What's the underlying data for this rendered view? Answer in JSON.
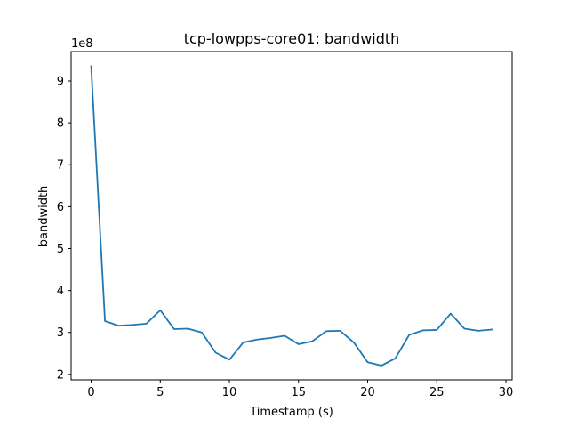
{
  "chart_data": {
    "type": "line",
    "title": "tcp-lowpps-core01: bandwidth",
    "xlabel": "Timestamp (s)",
    "ylabel": "bandwidth",
    "y_offset_label": "1e8",
    "xlim": [
      -1.45,
      30.45
    ],
    "ylim": [
      1.87,
      9.7
    ],
    "x_ticks": [
      0,
      5,
      10,
      15,
      20,
      25,
      30
    ],
    "y_ticks": [
      2,
      3,
      4,
      5,
      6,
      7,
      8,
      9
    ],
    "grid": false,
    "series": [
      {
        "color": "#1f77b4",
        "x": [
          0,
          1,
          2,
          3,
          4,
          5,
          6,
          7,
          8,
          9,
          10,
          11,
          12,
          13,
          14,
          15,
          16,
          17,
          18,
          19,
          20,
          21,
          22,
          23,
          24,
          25,
          26,
          27,
          28,
          29
        ],
        "y": [
          9.35,
          3.27,
          3.16,
          3.18,
          3.21,
          3.53,
          3.08,
          3.09,
          3.0,
          2.52,
          2.35,
          2.76,
          2.83,
          2.87,
          2.92,
          2.72,
          2.79,
          3.03,
          3.04,
          2.76,
          2.29,
          2.21,
          2.38,
          2.94,
          3.05,
          3.06,
          3.45,
          3.09,
          3.04,
          3.07
        ]
      }
    ]
  }
}
